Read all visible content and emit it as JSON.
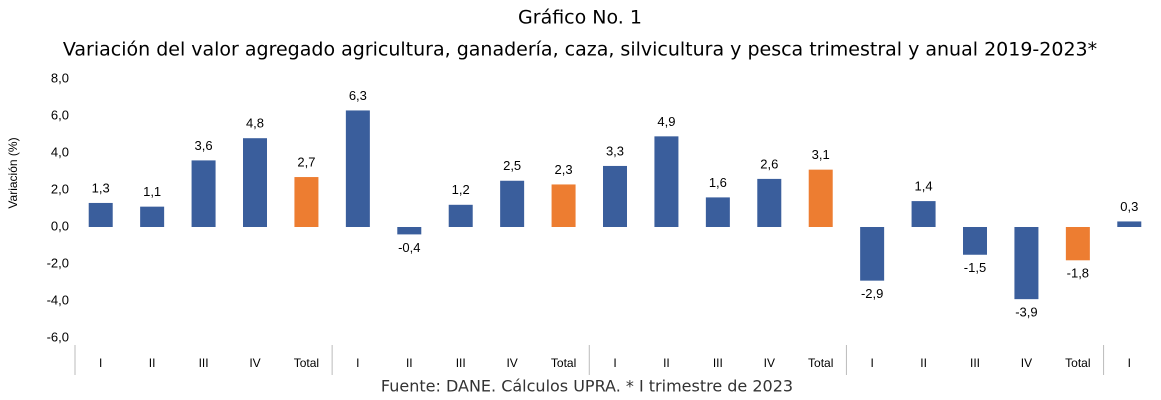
{
  "chart_data": {
    "type": "bar",
    "title": "Gráfico No. 1",
    "subtitle": "Variación del valor agregado agricultura, ganadería, caza, silvicultura y pesca trimestral y anual 2019-2023*",
    "ylabel": "Variación (%)",
    "source": "Fuente: DANE. Cálculos UPRA. * I trimestre de 2023",
    "categories": [
      "I",
      "II",
      "III",
      "IV",
      "Total",
      "I",
      "II",
      "III",
      "IV",
      "Total",
      "I",
      "II",
      "III",
      "IV",
      "Total",
      "I",
      "II",
      "III",
      "IV",
      "Total",
      "I"
    ],
    "values": [
      1.3,
      1.1,
      3.6,
      4.8,
      2.7,
      6.3,
      -0.4,
      1.2,
      2.5,
      2.3,
      3.3,
      4.9,
      1.6,
      2.6,
      3.1,
      -2.9,
      1.4,
      -1.5,
      -3.9,
      -1.8,
      0.3
    ],
    "value_labels": [
      "1,3",
      "1,1",
      "3,6",
      "4,8",
      "2,7",
      "6,3",
      "-0,4",
      "1,2",
      "2,5",
      "2,3",
      "3,3",
      "4,9",
      "1,6",
      "2,6",
      "3,1",
      "-2,9",
      "1,4",
      "-1,5",
      "-3,9",
      "-1,8",
      "0,3"
    ],
    "colors": [
      "#3a5e9c",
      "#3a5e9c",
      "#3a5e9c",
      "#3a5e9c",
      "#ed7d31",
      "#3a5e9c",
      "#3a5e9c",
      "#3a5e9c",
      "#3a5e9c",
      "#ed7d31",
      "#3a5e9c",
      "#3a5e9c",
      "#3a5e9c",
      "#3a5e9c",
      "#ed7d31",
      "#3a5e9c",
      "#3a5e9c",
      "#3a5e9c",
      "#3a5e9c",
      "#ed7d31",
      "#3a5e9c"
    ],
    "ylim": [
      -6,
      8
    ],
    "yticks": [
      {
        "value": -6,
        "label": "-6,0"
      },
      {
        "value": -4,
        "label": "-4,0"
      },
      {
        "value": -2,
        "label": "-2,0"
      },
      {
        "value": 0,
        "label": "0,0"
      },
      {
        "value": 2,
        "label": "2,0"
      },
      {
        "value": 4,
        "label": "4,0"
      },
      {
        "value": 6,
        "label": "6,0"
      },
      {
        "value": 8,
        "label": "8,0"
      }
    ],
    "grid": false
  }
}
